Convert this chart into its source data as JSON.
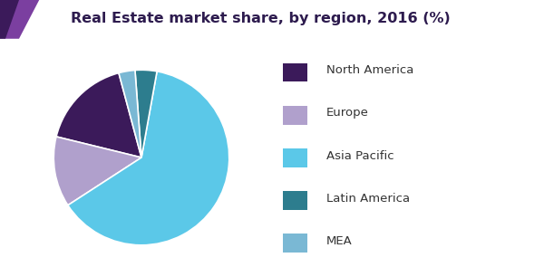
{
  "title": "Real Estate market share, by region, 2016 (%)",
  "title_fontsize": 11.5,
  "title_color": "#2d1b4e",
  "slices": [
    {
      "label": "North America",
      "value": 17,
      "color": "#3b1a5a"
    },
    {
      "label": "Europe",
      "value": 13,
      "color": "#b0a0cc"
    },
    {
      "label": "Asia Pacific",
      "value": 63,
      "color": "#5bc8e8"
    },
    {
      "label": "Latin America",
      "value": 4,
      "color": "#2d7d8e"
    },
    {
      "label": "MEA",
      "value": 3,
      "color": "#7ab8d4"
    }
  ],
  "legend_fontsize": 9.5,
  "legend_color": "#333333",
  "bg_color": "#ffffff",
  "startangle": 105,
  "header_purple_dark": "#3b1a5a",
  "header_purple_mid": "#7b3fa0",
  "header_line_purple": "#7b3fa0",
  "header_line_blue": "#5bc8e8"
}
